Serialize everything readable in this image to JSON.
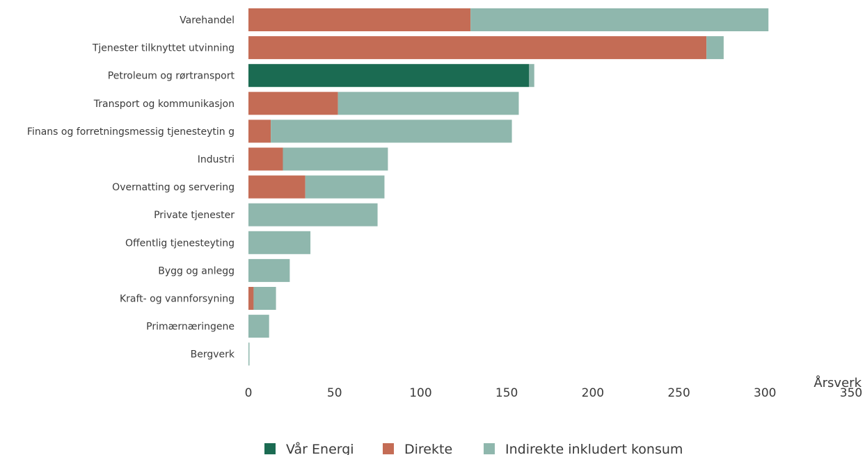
{
  "chart_data": {
    "type": "bar",
    "orientation": "horizontal",
    "stacked": true,
    "categories": [
      "Varehandel",
      "Tjenester tilknyttet utvinning",
      "Petroleum og rørtransport",
      "Transport og kommunikasjon",
      "Finans og forretningsmessig tjenesteytin g",
      "Industri",
      "Overnatting og servering",
      "Private tjenester",
      "Offentlig tjenesteyting",
      "Bygg og anlegg",
      "Kraft- og vannforsyning",
      "Primærnæringene",
      "Bergverk"
    ],
    "series": [
      {
        "name": "Vår Energi",
        "color": "#1b6b52",
        "values": [
          0,
          0,
          163,
          0,
          0,
          0,
          0,
          0,
          0,
          0,
          0,
          0,
          0
        ]
      },
      {
        "name": "Direkte",
        "color": "#c46c55",
        "values": [
          129,
          266,
          0,
          52,
          13,
          20,
          33,
          0,
          0,
          0,
          3,
          0,
          0
        ]
      },
      {
        "name": "Indirekte inkludert konsum",
        "color": "#8fb7ad",
        "values": [
          173,
          10,
          3,
          105,
          140,
          61,
          46,
          75,
          36,
          24,
          13,
          12,
          0.5
        ]
      }
    ],
    "xlabel": "Årsverk",
    "xlim": [
      0,
      350
    ],
    "xticks": [
      0,
      50,
      100,
      150,
      200,
      250,
      300,
      350
    ],
    "grid": false,
    "legend_position": "bottom-center"
  }
}
